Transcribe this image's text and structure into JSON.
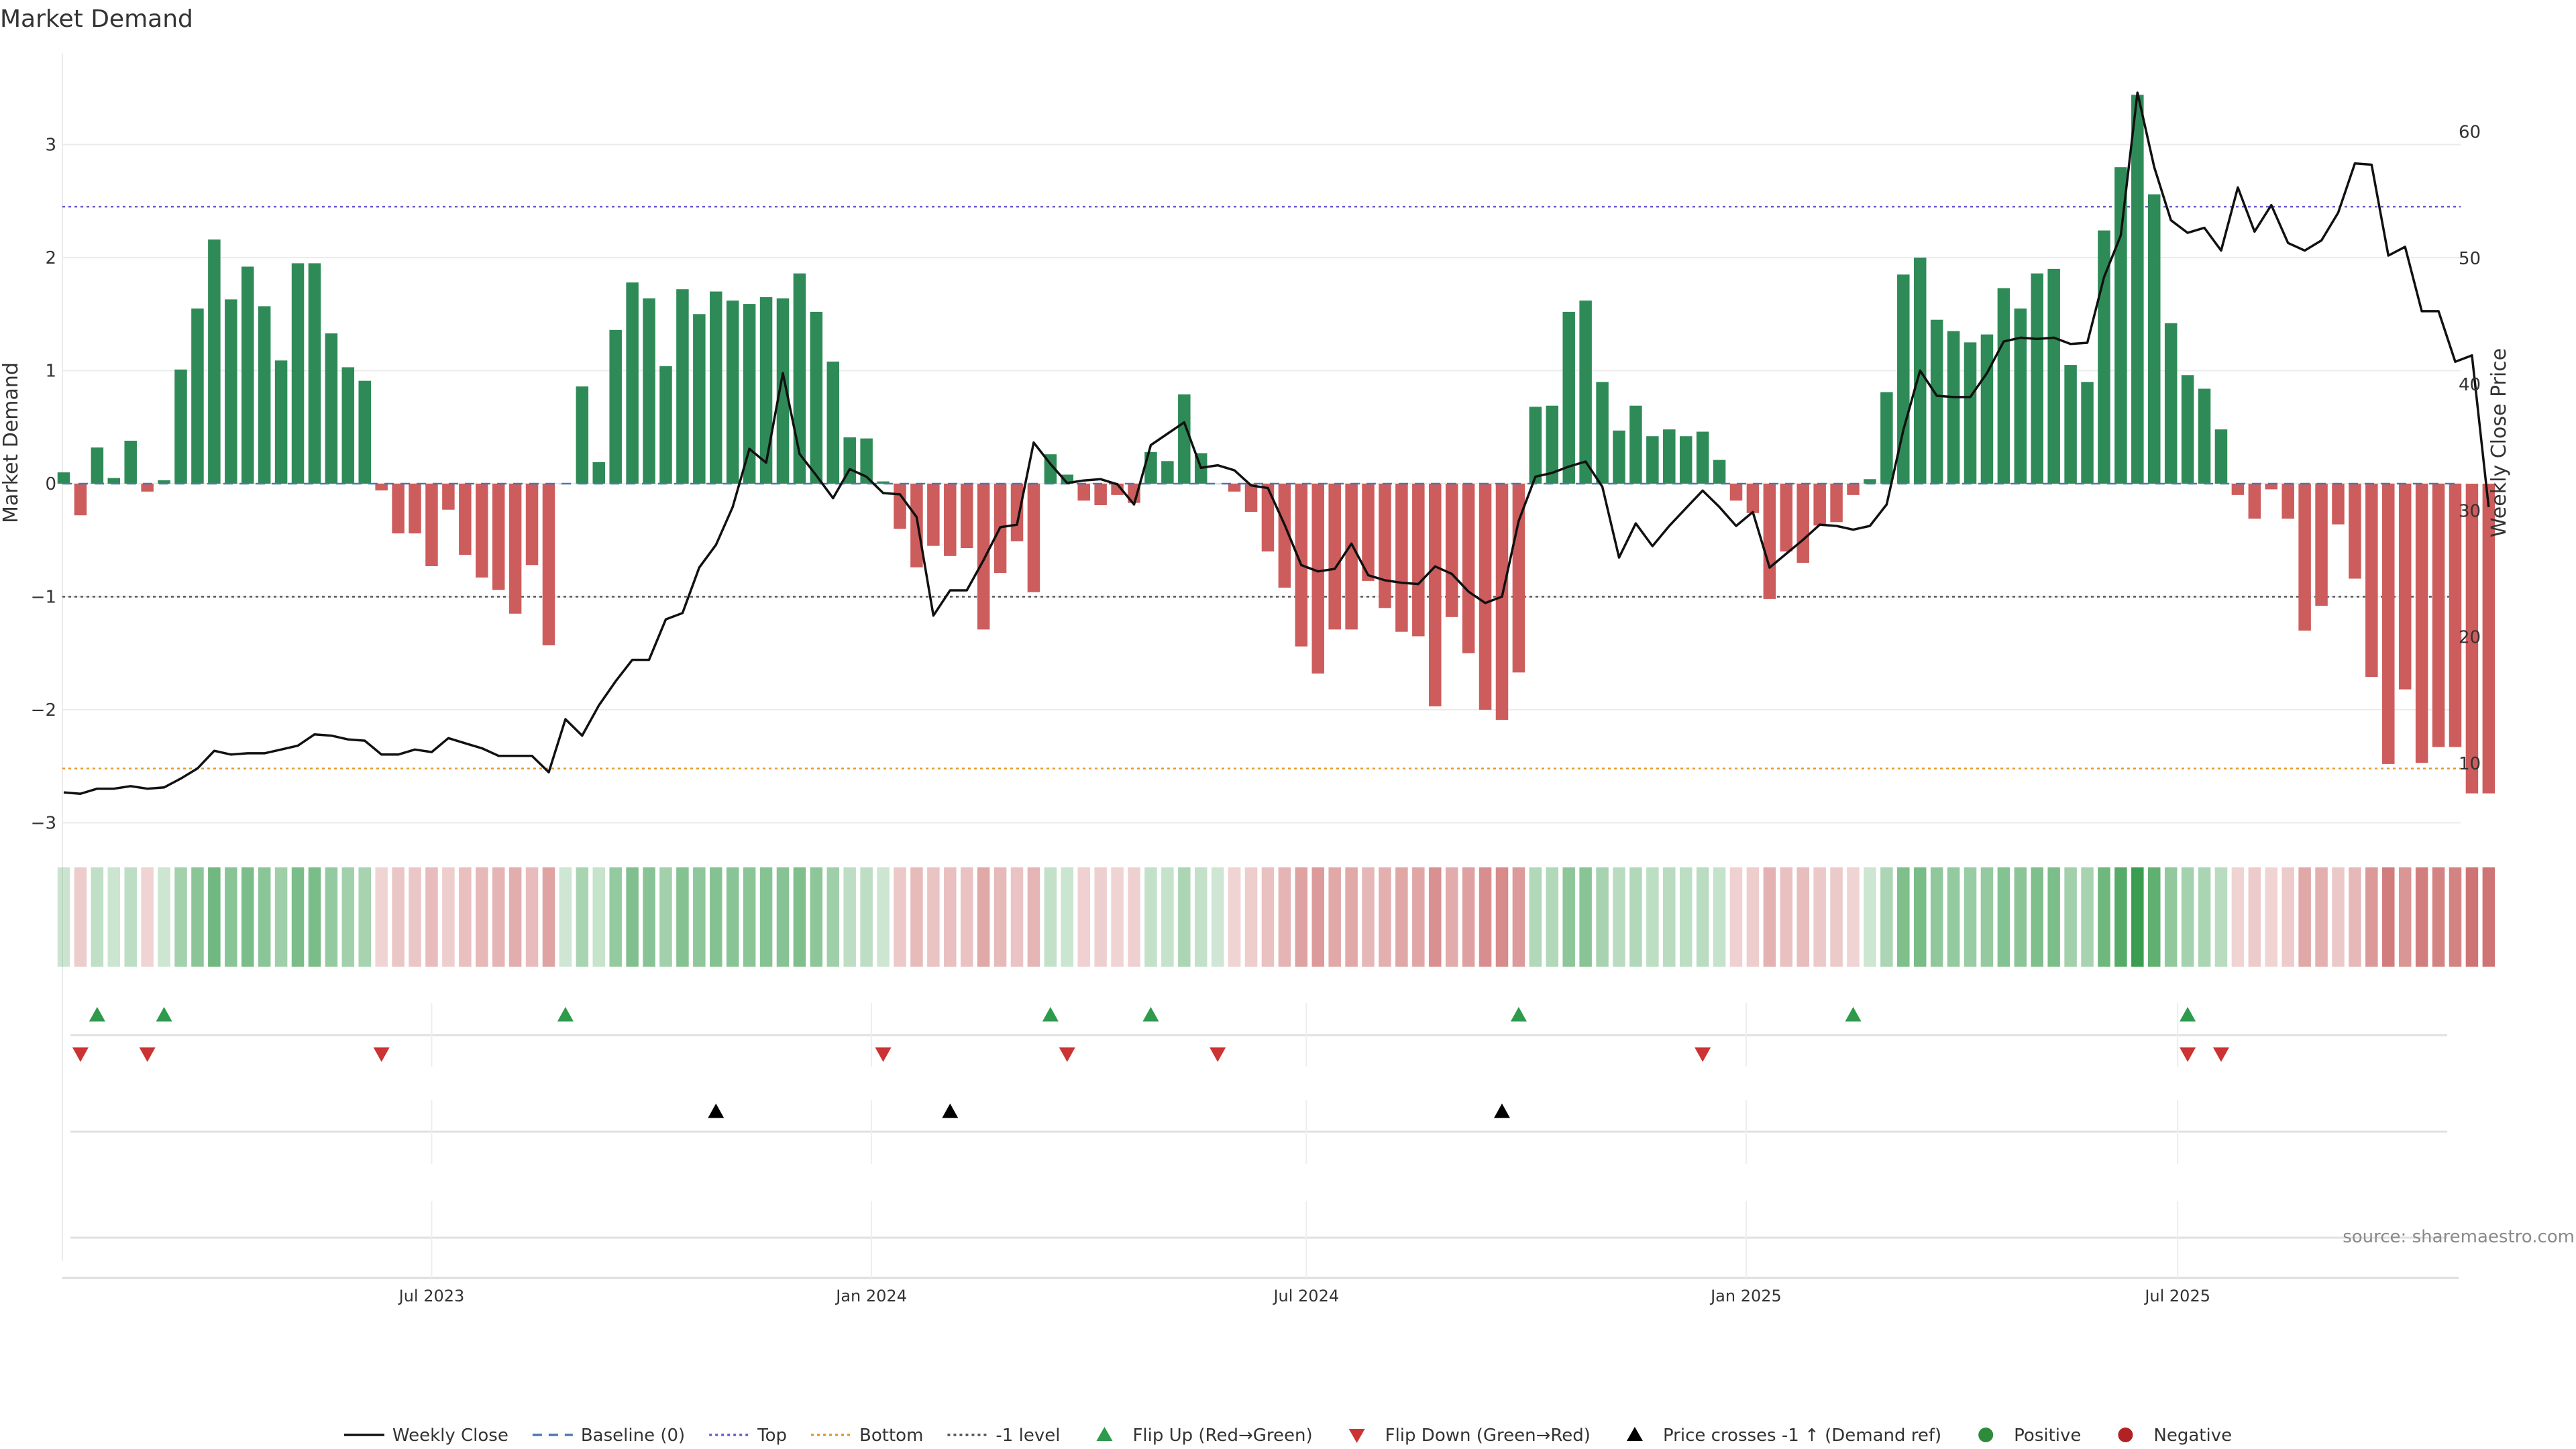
{
  "chart_data": {
    "type": "bar",
    "title": "Market Demand",
    "ylabel": "Market Demand",
    "y2label": "Weekly Close Price",
    "ylim": [
      -3.3,
      3.55
    ],
    "y2lim": [
      4.7,
      66.5
    ],
    "yticks": [
      -3,
      -2,
      -1,
      0,
      1,
      2,
      3
    ],
    "y2ticks": [
      10,
      20,
      30,
      40,
      50,
      60
    ],
    "x_start": "2023-01-02",
    "x_freq": "weekly",
    "xticks": [
      {
        "label": "Jul 2023",
        "index": 22
      },
      {
        "label": "Jan 2024",
        "index": 48.3
      },
      {
        "label": "Jul 2024",
        "index": 74.3
      },
      {
        "label": "Jan 2025",
        "index": 100.6
      },
      {
        "label": "Jul 2025",
        "index": 126.4
      }
    ],
    "reference_lines": {
      "baseline": 0,
      "top": 2.45,
      "bottom": -2.52,
      "minus_one_level": -1
    },
    "series": [
      {
        "name": "Market Demand",
        "values": [
          0.1,
          -0.28,
          0.32,
          0.05,
          0.38,
          -0.07,
          0.03,
          1.01,
          1.55,
          2.16,
          1.63,
          1.92,
          1.57,
          1.09,
          1.95,
          1.95,
          1.33,
          1.03,
          0.91,
          -0.06,
          -0.44,
          -0.44,
          -0.73,
          -0.23,
          -0.63,
          -0.83,
          -0.94,
          -1.15,
          -0.72,
          -1.43,
          0.0,
          0.86,
          0.19,
          1.36,
          1.78,
          1.64,
          1.04,
          1.72,
          1.5,
          1.7,
          1.62,
          1.59,
          1.65,
          1.64,
          1.86,
          1.52,
          1.08,
          0.41,
          0.4,
          0.02,
          -0.4,
          -0.74,
          -0.55,
          -0.64,
          -0.57,
          -1.29,
          -0.79,
          -0.51,
          -0.96,
          0.26,
          0.08,
          -0.15,
          -0.19,
          -0.1,
          -0.17,
          0.28,
          0.2,
          0.79,
          0.27,
          0.0,
          -0.07,
          -0.25,
          -0.6,
          -0.92,
          -1.44,
          -1.68,
          -1.29,
          -1.29,
          -0.86,
          -1.1,
          -1.31,
          -1.35,
          -1.97,
          -1.18,
          -1.5,
          -2.0,
          -2.09,
          -1.67,
          0.68,
          0.69,
          1.52,
          1.62,
          0.9,
          0.47,
          0.69,
          0.42,
          0.48,
          0.42,
          0.46,
          0.21,
          -0.15,
          -0.26,
          -1.02,
          -0.6,
          -0.7,
          -0.37,
          -0.34,
          -0.1,
          0.04,
          0.81,
          1.85,
          2.0,
          1.45,
          1.35,
          1.25,
          1.32,
          1.73,
          1.55,
          1.86,
          1.9,
          1.05,
          0.9,
          2.24,
          2.8,
          3.44,
          2.56,
          1.42,
          0.96,
          0.84,
          0.48,
          -0.1,
          -0.31,
          -0.05,
          -0.31,
          -1.3,
          -1.08,
          -0.36,
          -0.84,
          -1.71,
          -2.48,
          -1.82,
          -2.47,
          -2.33,
          -2.33,
          -2.74,
          -2.74
        ]
      },
      {
        "name": "Weekly Close",
        "axis": "right",
        "values": [
          7.7,
          7.6,
          8.0,
          8.0,
          8.2,
          8.0,
          8.1,
          8.8,
          9.6,
          11.0,
          10.7,
          10.8,
          10.8,
          11.1,
          11.4,
          12.3,
          12.2,
          11.9,
          11.8,
          10.7,
          10.7,
          11.1,
          10.9,
          12.0,
          11.6,
          11.2,
          10.6,
          10.6,
          10.6,
          9.3,
          13.5,
          12.2,
          14.6,
          16.5,
          18.2,
          18.2,
          21.4,
          21.9,
          25.5,
          27.3,
          30.3,
          34.9,
          33.8,
          40.9,
          34.5,
          32.8,
          31.0,
          33.3,
          32.7,
          31.4,
          31.3,
          29.5,
          21.7,
          23.7,
          23.7,
          26.1,
          28.7,
          28.9,
          35.4,
          33.7,
          32.2,
          32.4,
          32.5,
          32.1,
          30.5,
          35.2,
          36.1,
          37.0,
          33.4,
          33.6,
          33.2,
          32.0,
          31.8,
          28.9,
          25.7,
          25.2,
          25.4,
          27.4,
          24.9,
          24.5,
          24.3,
          24.2,
          25.6,
          25.0,
          23.6,
          22.7,
          23.2,
          29.2,
          32.7,
          33.0,
          33.5,
          33.9,
          31.9,
          26.3,
          29.0,
          27.2,
          28.8,
          30.2,
          31.6,
          30.3,
          28.8,
          29.9,
          25.5,
          26.6,
          27.7,
          28.9,
          28.8,
          28.5,
          28.8,
          30.5,
          36.4,
          41.1,
          39.1,
          39.0,
          39.0,
          40.9,
          43.4,
          43.7,
          43.6,
          43.7,
          43.2,
          43.3,
          48.5,
          51.8,
          63.1,
          57.2,
          53.0,
          52.0,
          52.4,
          50.6,
          55.6,
          52.1,
          54.2,
          51.2,
          50.6,
          51.4,
          53.6,
          57.5,
          57.4,
          50.2,
          50.9,
          45.8,
          45.8,
          41.8,
          42.3,
          30.3
        ]
      }
    ],
    "heat_strip": {
      "positive": "#3a9d4f",
      "negative": "#c65b5b"
    },
    "events": {
      "flip_up": [
        2,
        6,
        30,
        59,
        65,
        87,
        107,
        127
      ],
      "flip_down": [
        1,
        5,
        19,
        49,
        60,
        69,
        98,
        127,
        129
      ],
      "price_crosses": [
        39,
        53,
        86
      ]
    },
    "legend": {
      "placement": "bottom-center",
      "items": [
        {
          "label": "Weekly Close",
          "kind": "line",
          "color": "#111111"
        },
        {
          "label": "Baseline (0)",
          "kind": "dash",
          "color": "#4a78b6"
        },
        {
          "label": "Top",
          "kind": "dot",
          "color": "#6a5acd"
        },
        {
          "label": "Bottom",
          "kind": "dot",
          "color": "#e39a2a"
        },
        {
          "label": "-1 level",
          "kind": "dot",
          "color": "#555555"
        },
        {
          "label": "Flip Up (Red→Green)",
          "kind": "tri-up",
          "color": "#2e9a4c"
        },
        {
          "label": "Flip Down (Green→Red)",
          "kind": "tri-down",
          "color": "#cc3333"
        },
        {
          "label": "Price crosses -1 ↑ (Demand ref)",
          "kind": "tri-up",
          "color": "#000000"
        },
        {
          "label": "Positive",
          "kind": "circle",
          "color": "#2e8b3a"
        },
        {
          "label": "Negative",
          "kind": "circle",
          "color": "#b22222"
        }
      ]
    },
    "colors": {
      "bar_positive": "#2e8b57",
      "bar_negative": "#cd5c5c",
      "price_line": "#111111"
    },
    "source_note": "source: sharemaestro.com"
  }
}
